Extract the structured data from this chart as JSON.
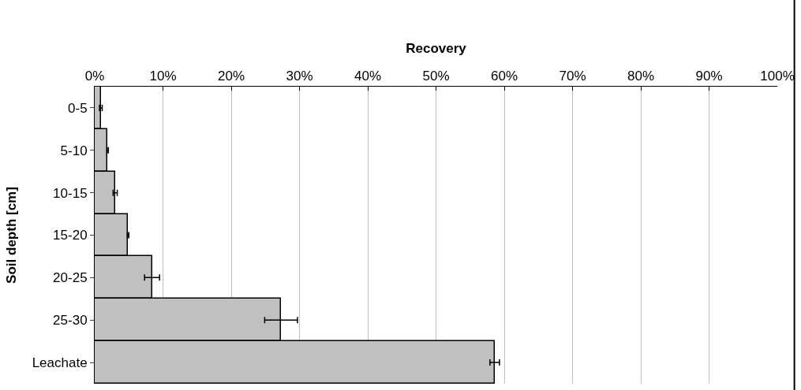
{
  "chart_data": {
    "type": "bar",
    "orientation": "horizontal",
    "xlabel": "Recovery",
    "ylabel": "Soil depth [cm]",
    "categories": [
      "0-5",
      "5-10",
      "10-15",
      "15-20",
      "20-25",
      "25-30",
      "Leachate"
    ],
    "values": [
      0.9,
      1.9,
      3.0,
      4.9,
      8.4,
      27.3,
      58.6
    ],
    "errors": [
      0.2,
      0.1,
      0.3,
      0.1,
      1.1,
      2.4,
      0.7
    ],
    "color": "#c0c0c0",
    "xlim": [
      0,
      100
    ],
    "xticks": [
      {
        "value": 0,
        "label": "0%"
      },
      {
        "value": 10,
        "label": "10%"
      },
      {
        "value": 20,
        "label": "20%"
      },
      {
        "value": 30,
        "label": "30%"
      },
      {
        "value": 40,
        "label": "40%"
      },
      {
        "value": 50,
        "label": "50%"
      },
      {
        "value": 60,
        "label": "60%"
      },
      {
        "value": 70,
        "label": "70%"
      },
      {
        "value": 80,
        "label": "80%"
      },
      {
        "value": 90,
        "label": "90%"
      },
      {
        "value": 100,
        "label": "100%"
      }
    ],
    "grid": "x"
  }
}
